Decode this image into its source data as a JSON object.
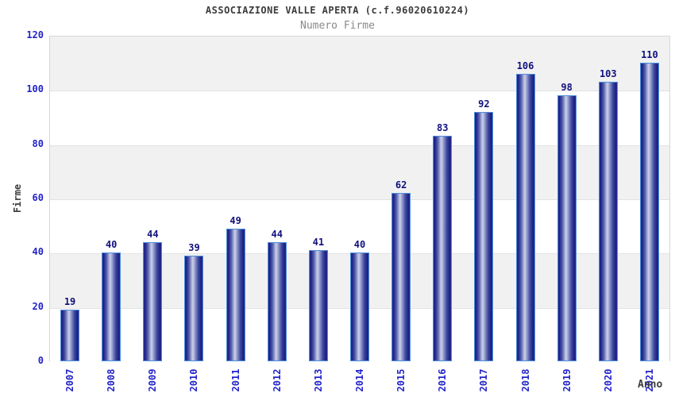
{
  "chart_data": {
    "type": "bar",
    "title": "ASSOCIAZIONE VALLE APERTA (c.f.96020610224)",
    "subtitle": "Numero Firme",
    "xlabel": "Anno",
    "ylabel": "Firme",
    "categories": [
      "2007",
      "2008",
      "2009",
      "2010",
      "2011",
      "2012",
      "2013",
      "2014",
      "2015",
      "2016",
      "2017",
      "2018",
      "2019",
      "2020",
      "2021"
    ],
    "values": [
      19,
      40,
      44,
      39,
      49,
      44,
      41,
      40,
      62,
      83,
      92,
      106,
      98,
      103,
      110
    ],
    "ylim": [
      0,
      120
    ],
    "ytick_step": 20,
    "grid": "alternating-horizontal-bands",
    "legend": "none",
    "colors": {
      "bar_edge": "#1d2287",
      "bar_highlight": "#ccd0ea",
      "bar_border": "#4d8edb",
      "tick_label": "#2323cb",
      "value_label": "#11117e",
      "band_gray": "#f1f1f1",
      "plot_border": "#d6d6d6",
      "title": "#3c3c3c",
      "subtitle": "#8a8a8a",
      "axis_label": "#3c3c3c"
    }
  }
}
